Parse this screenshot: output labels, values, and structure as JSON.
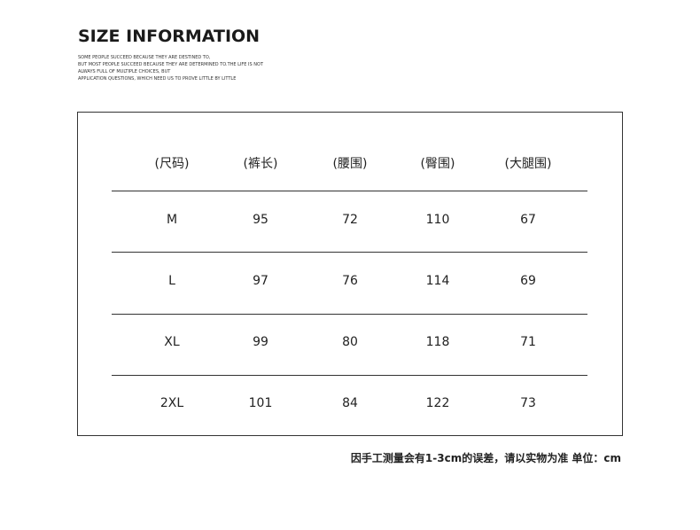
{
  "title": "SIZE INFORMATION",
  "subtitle_lines": [
    "SOME PEOPLE SUCCEED BECAUSE THEY ARE DESTINED TO,",
    " BUT MOST PEOPLE SUCCEED BECAUSE THEY ARE DETERMINED TO.THE LIFE IS NOT",
    "ALWAYS FULL OF MULTIPLE CHOICES, BUT",
    "APPLICATION QUESTIONS, WHICH NEED US TO PROVE LITTLE BY LITTLE"
  ],
  "table": {
    "headers": [
      "(尺码)",
      "(裤长)",
      "(腰围)",
      "(臀围)",
      "(大腿围)"
    ],
    "rows": [
      [
        "M",
        "95",
        "72",
        "110",
        "67"
      ],
      [
        "L",
        "97",
        "76",
        "114",
        "69"
      ],
      [
        "XL",
        "99",
        "80",
        "118",
        "71"
      ],
      [
        "2XL",
        "101",
        "84",
        "122",
        "73"
      ]
    ]
  },
  "note": "因手工测量会有1-3cm的误差，请以实物为准 单位：cm"
}
